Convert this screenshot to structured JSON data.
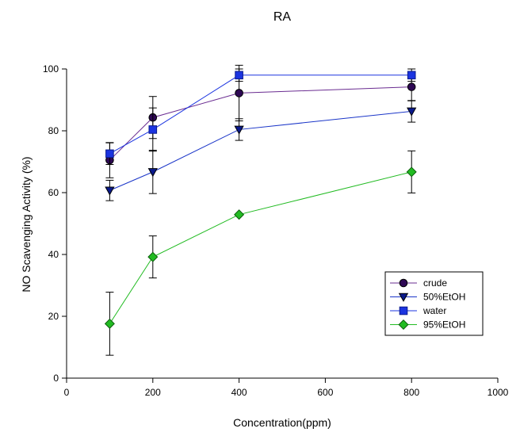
{
  "chart_data": {
    "type": "line",
    "title": "RA",
    "xlabel": "Concentration(ppm)",
    "ylabel": "NO Scavenging Activity (%)",
    "xlim": [
      0,
      1000
    ],
    "ylim": [
      0,
      100
    ],
    "x_ticks": [
      0,
      200,
      400,
      600,
      800,
      1000
    ],
    "y_ticks": [
      0,
      20,
      40,
      60,
      80,
      100
    ],
    "grid": false,
    "legend_position": "bottom-right",
    "x": [
      100,
      200,
      400,
      800
    ],
    "series": [
      {
        "name": "crude",
        "values": [
          70.5,
          84.3,
          92.2,
          94.2
        ],
        "errors": [
          5.7,
          6.8,
          9,
          4.5
        ],
        "marker": "circle",
        "color": "#2e0854",
        "line_color": "#6a2c91"
      },
      {
        "name": "50%EtOH",
        "values": [
          60.7,
          66.7,
          80.4,
          86.3
        ],
        "errors": [
          3.3,
          7,
          3.5,
          3.5
        ],
        "marker": "triangle-down",
        "color": "#0a1a8c",
        "line_color": "#1a35c8"
      },
      {
        "name": "water",
        "values": [
          72.6,
          80.4,
          98.0,
          98.0
        ],
        "errors": [
          3.5,
          7,
          2,
          2
        ],
        "marker": "square",
        "color": "#1b34e0",
        "line_color": "#1b34e0"
      },
      {
        "name": "95%EtOH",
        "values": [
          17.6,
          39.2,
          52.9,
          66.7
        ],
        "errors": [
          10.2,
          6.8,
          0,
          6.8
        ],
        "marker": "diamond",
        "color": "#22bb22",
        "line_color": "#22bb22"
      }
    ]
  }
}
